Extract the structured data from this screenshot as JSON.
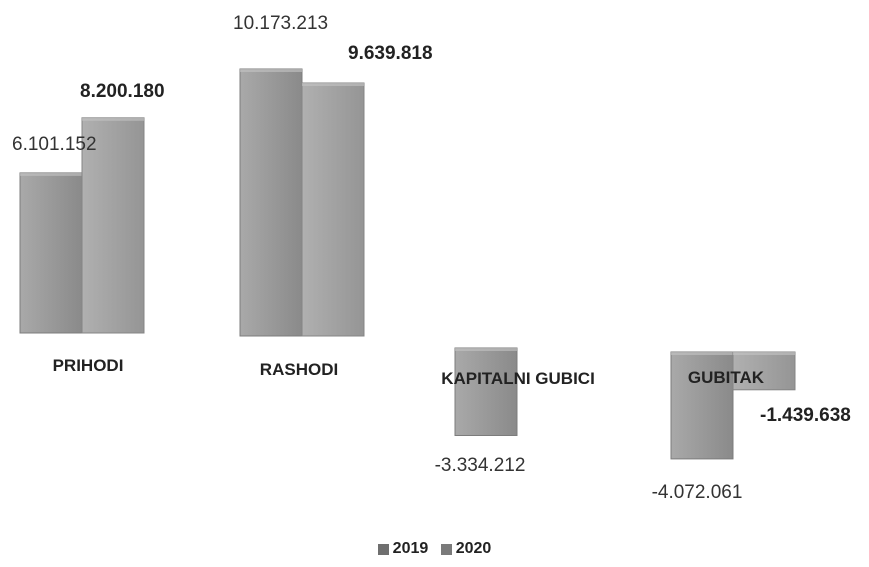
{
  "chart_data": {
    "type": "bar",
    "categories": [
      "PRIHODI",
      "RASHODI",
      "KAPITALNI GUBICI",
      "GUBITAK"
    ],
    "series": [
      {
        "name": "2019",
        "values": [
          6101152,
          10173213,
          -3334212,
          -4072061
        ],
        "labels": [
          "6.101.152",
          "10.173.213",
          "-3.334.212",
          "-4.072.061"
        ]
      },
      {
        "name": "2020",
        "values": [
          8200180,
          9639818,
          0,
          -1439638
        ],
        "labels": [
          "8.200.180",
          "9.639.818",
          "",
          "-1.439.638"
        ]
      }
    ],
    "colors": {
      "2019": "#8e8e8e",
      "2020": "#9c9c9c"
    },
    "legend_position": "bottom",
    "grid": false
  }
}
